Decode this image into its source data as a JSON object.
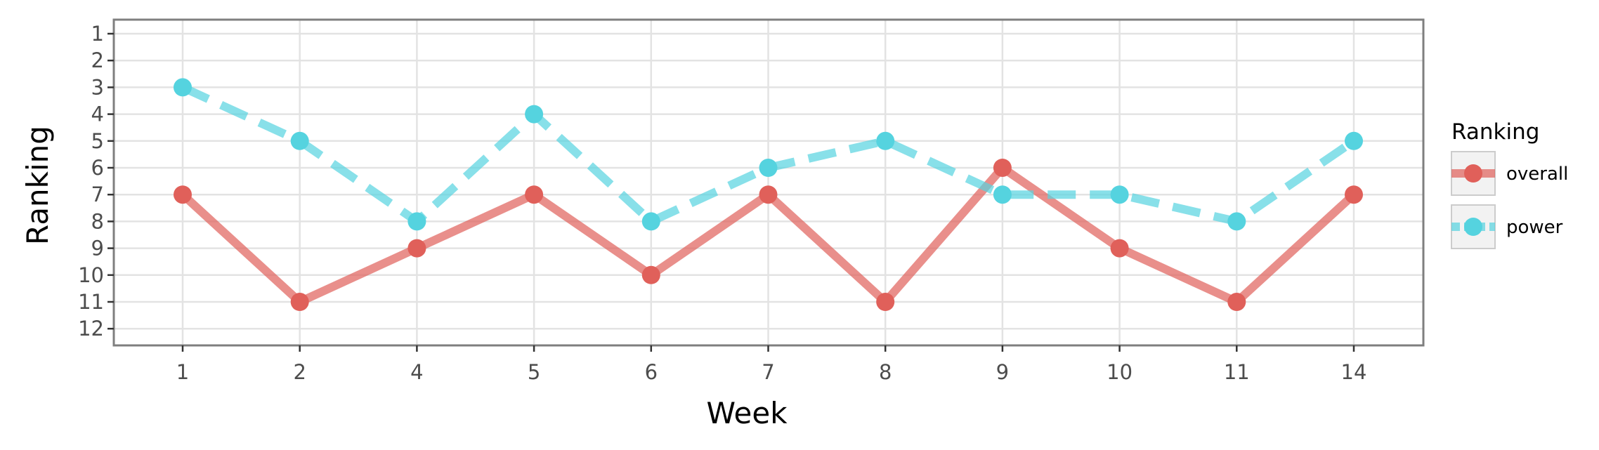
{
  "chart_data": {
    "type": "line",
    "title": "",
    "xlabel": "Week",
    "ylabel": "Ranking",
    "categories": [
      "1",
      "2",
      "4",
      "5",
      "6",
      "7",
      "8",
      "9",
      "10",
      "11",
      "14"
    ],
    "y_ticks": [
      "1",
      "2",
      "3",
      "4",
      "5",
      "6",
      "7",
      "8",
      "9",
      "10",
      "11",
      "12"
    ],
    "ylim": [
      1,
      12
    ],
    "y_reversed": true,
    "grid": true,
    "legend": {
      "title": "Ranking",
      "position": "right"
    },
    "series": [
      {
        "name": "overall",
        "values": [
          7,
          11,
          9,
          7,
          10,
          7,
          11,
          6,
          9,
          11,
          7
        ],
        "color": "#e0605a",
        "line_style": "solid"
      },
      {
        "name": "power",
        "values": [
          3,
          5,
          8,
          4,
          8,
          6,
          5,
          7,
          7,
          8,
          5
        ],
        "color": "#55d3df",
        "line_style": "dashed"
      }
    ]
  }
}
